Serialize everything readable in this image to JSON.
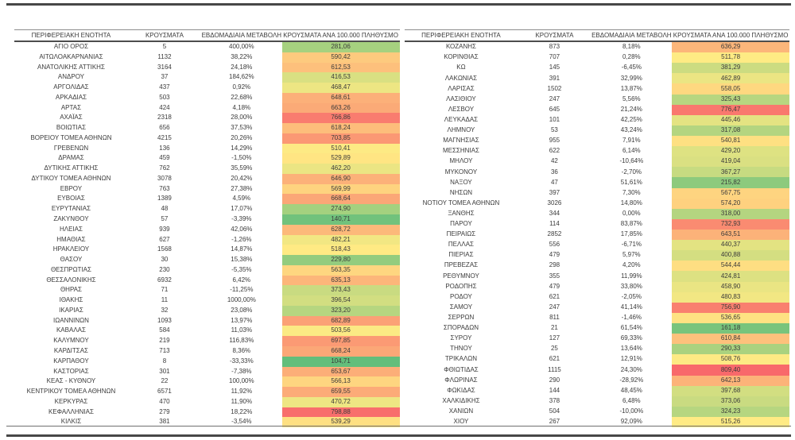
{
  "header": {
    "region": "ΠΕΡΙΦΕΡΕΙΑΚΗ ΕΝΟΤΗΤΑ",
    "cases": "ΚΡΟΥΣΜΑΤΑ",
    "weekly_change": "ΕΒΔΟΜΑΔΙΑΙΑ ΜΕΤΑΒΟΛΗ",
    "per_100k": "ΚΡΟΥΣΜΑΤΑ ΑΝΑ 100.000 ΠΛΗΘΥΣΜΟ"
  },
  "color_scale": {
    "min_color": "#63BE7B",
    "mid_color": "#FFEB84",
    "max_color": "#F8696B"
  },
  "tables": {
    "left": {
      "rows": [
        [
          "ΑΓΙΟ ΟΡΟΣ",
          "5",
          "400,00%",
          "281,06"
        ],
        [
          "ΑΙΤΩΛΟΑΚΑΡΝΑΝΙΑΣ",
          "1132",
          "38,22%",
          "590,42"
        ],
        [
          "ΑΝΑΤΟΛΙΚΗΣ ΑΤΤΙΚΗΣ",
          "3164",
          "24,18%",
          "612,53"
        ],
        [
          "ΑΝΔΡΟΥ",
          "37",
          "184,62%",
          "416,53"
        ],
        [
          "ΑΡΓΟΛΙΔΑΣ",
          "437",
          "0,92%",
          "468,47"
        ],
        [
          "ΑΡΚΑΔΙΑΣ",
          "503",
          "22,68%",
          "648,61"
        ],
        [
          "ΑΡΤΑΣ",
          "424",
          "4,18%",
          "663,26"
        ],
        [
          "ΑΧΑΪΑΣ",
          "2318",
          "28,00%",
          "766,86"
        ],
        [
          "ΒΟΙΩΤΙΑΣ",
          "656",
          "37,53%",
          "618,24"
        ],
        [
          "ΒΟΡΕΙΟΥ ΤΟΜΕΑ ΑΘΗΝΩΝ",
          "4215",
          "20,26%",
          "703,85"
        ],
        [
          "ΓΡΕΒΕΝΩΝ",
          "136",
          "14,29%",
          "510,41"
        ],
        [
          "ΔΡΑΜΑΣ",
          "459",
          "-1,50%",
          "529,89"
        ],
        [
          "ΔΥΤΙΚΗΣ ΑΤΤΙΚΗΣ",
          "762",
          "35,59%",
          "462,20"
        ],
        [
          "ΔΥΤΙΚΟΥ ΤΟΜΕΑ ΑΘΗΝΩΝ",
          "3078",
          "20,42%",
          "646,90"
        ],
        [
          "ΕΒΡΟΥ",
          "763",
          "27,38%",
          "569,99"
        ],
        [
          "ΕΥΒΟΙΑΣ",
          "1389",
          "4,59%",
          "668,64"
        ],
        [
          "ΕΥΡΥΤΑΝΙΑΣ",
          "48",
          "17,07%",
          "274,90"
        ],
        [
          "ΖΑΚΥΝΘΟΥ",
          "57",
          "-3,39%",
          "140,71"
        ],
        [
          "ΗΛΕΙΑΣ",
          "939",
          "42,06%",
          "628,72"
        ],
        [
          "ΗΜΑΘΙΑΣ",
          "627",
          "-1,26%",
          "482,21"
        ],
        [
          "ΗΡΑΚΛΕΙΟΥ",
          "1568",
          "14,87%",
          "518,43"
        ],
        [
          "ΘΑΣΟΥ",
          "30",
          "15,38%",
          "229,80"
        ],
        [
          "ΘΕΣΠΡΩΤΙΑΣ",
          "230",
          "-5,35%",
          "563,35"
        ],
        [
          "ΘΕΣΣΑΛΟΝΙΚΗΣ",
          "6932",
          "6,42%",
          "635,13"
        ],
        [
          "ΘΗΡΑΣ",
          "71",
          "-11,25%",
          "373,43"
        ],
        [
          "ΙΘΑΚΗΣ",
          "11",
          "1000,00%",
          "396,54"
        ],
        [
          "ΙΚΑΡΙΑΣ",
          "32",
          "23,08%",
          "323,20"
        ],
        [
          "ΙΩΑΝΝΙΝΩΝ",
          "1093",
          "13,97%",
          "682,89"
        ],
        [
          "ΚΑΒΑΛΑΣ",
          "584",
          "11,03%",
          "503,56"
        ],
        [
          "ΚΑΛΥΜΝΟΥ",
          "219",
          "116,83%",
          "697,85"
        ],
        [
          "ΚΑΡΔΙΤΣΑΣ",
          "713",
          "8,36%",
          "668,24"
        ],
        [
          "ΚΑΡΠΑΘΟΥ",
          "8",
          "-33,33%",
          "104,71"
        ],
        [
          "ΚΑΣΤΟΡΙΑΣ",
          "301",
          "-7,38%",
          "653,67"
        ],
        [
          "ΚΕΑΣ - ΚΥΘΝΟΥ",
          "22",
          "100,00%",
          "566,13"
        ],
        [
          "ΚΕΝΤΡΙΚΟΥ ΤΟΜΕΑ ΑΘΗΝΩΝ",
          "6571",
          "11,92%",
          "659,55"
        ],
        [
          "ΚΕΡΚΥΡΑΣ",
          "470",
          "11,90%",
          "470,72"
        ],
        [
          "ΚΕΦΑΛΛΗΝΙΑΣ",
          "279",
          "18,22%",
          "798,88"
        ],
        [
          "ΚΙΛΚΙΣ",
          "381",
          "-3,54%",
          "539,29"
        ]
      ]
    },
    "right": {
      "rows": [
        [
          "ΚΟΖΑΝΗΣ",
          "873",
          "8,18%",
          "636,29"
        ],
        [
          "ΚΟΡΙΝΘΙΑΣ",
          "707",
          "0,28%",
          "511,78"
        ],
        [
          "ΚΩ",
          "145",
          "-6,45%",
          "381,29"
        ],
        [
          "ΛΑΚΩΝΙΑΣ",
          "391",
          "32,99%",
          "462,89"
        ],
        [
          "ΛΑΡΙΣΑΣ",
          "1502",
          "13,87%",
          "558,05"
        ],
        [
          "ΛΑΣΙΘΙΟΥ",
          "247",
          "5,56%",
          "325,43"
        ],
        [
          "ΛΕΣΒΟΥ",
          "645",
          "21,24%",
          "776,47"
        ],
        [
          "ΛΕΥΚΑΔΑΣ",
          "101",
          "42,25%",
          "445,46"
        ],
        [
          "ΛΗΜΝΟΥ",
          "53",
          "43,24%",
          "317,08"
        ],
        [
          "ΜΑΓΝΗΣΙΑΣ",
          "955",
          "7,91%",
          "540,81"
        ],
        [
          "ΜΕΣΣΗΝΙΑΣ",
          "622",
          "6,14%",
          "429,20"
        ],
        [
          "ΜΗΛΟΥ",
          "42",
          "-10,64%",
          "419,04"
        ],
        [
          "ΜΥΚΟΝΟΥ",
          "36",
          "-2,70%",
          "367,27"
        ],
        [
          "ΝΑΞΟΥ",
          "47",
          "51,61%",
          "215,82"
        ],
        [
          "ΝΗΣΩΝ",
          "397",
          "7,30%",
          "567,75"
        ],
        [
          "ΝΟΤΙΟΥ ΤΟΜΕΑ ΑΘΗΝΩΝ",
          "3026",
          "14,80%",
          "574,20"
        ],
        [
          "ΞΑΝΘΗΣ",
          "344",
          "0,00%",
          "318,00"
        ],
        [
          "ΠΑΡΟΥ",
          "114",
          "83,87%",
          "732,93"
        ],
        [
          "ΠΕΙΡΑΙΩΣ",
          "2852",
          "17,85%",
          "643,51"
        ],
        [
          "ΠΕΛΛΑΣ",
          "556",
          "-6,71%",
          "440,37"
        ],
        [
          "ΠΙΕΡΙΑΣ",
          "479",
          "5,97%",
          "400,88"
        ],
        [
          "ΠΡΕΒΕΖΑΣ",
          "298",
          "4,20%",
          "544,44"
        ],
        [
          "ΡΕΘΥΜΝΟΥ",
          "355",
          "11,99%",
          "424,81"
        ],
        [
          "ΡΟΔΟΠΗΣ",
          "479",
          "33,80%",
          "458,90"
        ],
        [
          "ΡΟΔΟΥ",
          "621",
          "-2,05%",
          "480,83"
        ],
        [
          "ΣΑΜΟΥ",
          "247",
          "41,14%",
          "756,90"
        ],
        [
          "ΣΕΡΡΩΝ",
          "811",
          "-1,46%",
          "536,65"
        ],
        [
          "ΣΠΟΡΑΔΩΝ",
          "21",
          "61,54%",
          "161,18"
        ],
        [
          "ΣΥΡΟΥ",
          "127",
          "69,33%",
          "610,84"
        ],
        [
          "ΤΗΝΟΥ",
          "25",
          "13,64%",
          "290,33"
        ],
        [
          "ΤΡΙΚΑΛΩΝ",
          "621",
          "12,91%",
          "508,76"
        ],
        [
          "ΦΘΙΩΤΙΔΑΣ",
          "1115",
          "24,30%",
          "809,40"
        ],
        [
          "ΦΛΩΡΙΝΑΣ",
          "290",
          "-28,92%",
          "642,13"
        ],
        [
          "ΦΩΚΙΔΑΣ",
          "144",
          "48,45%",
          "397,68"
        ],
        [
          "ΧΑΛΚΙΔΙΚΗΣ",
          "378",
          "6,48%",
          "373,06"
        ],
        [
          "ΧΑΝΙΩΝ",
          "504",
          "-10,00%",
          "324,23"
        ],
        [
          "ΧΙΟΥ",
          "267",
          "92,09%",
          "515,26"
        ]
      ]
    }
  }
}
